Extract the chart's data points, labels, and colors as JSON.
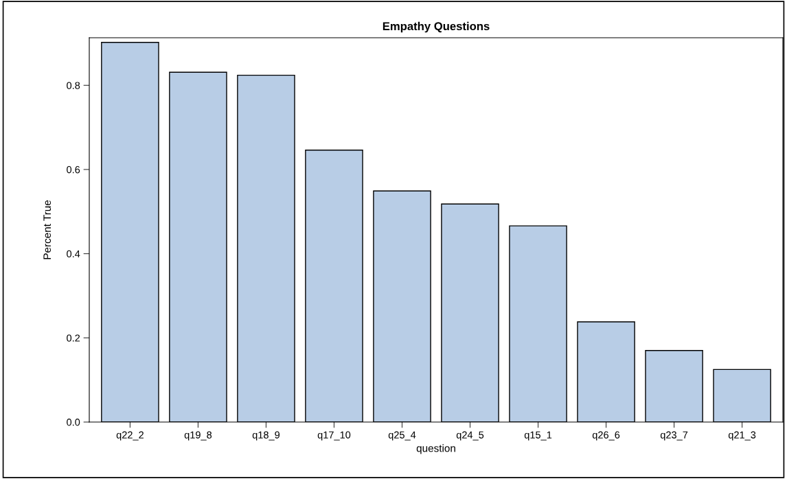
{
  "chart_data": {
    "type": "bar",
    "title": "Empathy Questions",
    "xlabel": "question",
    "ylabel": "Percent True",
    "categories": [
      "q22_2",
      "q19_8",
      "q18_9",
      "q17_10",
      "q25_4",
      "q24_5",
      "q15_1",
      "q26_6",
      "q23_7",
      "q21_3"
    ],
    "values": [
      0.902,
      0.831,
      0.824,
      0.646,
      0.549,
      0.518,
      0.466,
      0.238,
      0.17,
      0.125
    ],
    "color": "#b8cde6",
    "ylim": [
      0,
      0.913
    ],
    "yticks": [
      {
        "value": 0,
        "label": "0.0"
      },
      0.2,
      0.4,
      0.6,
      0.8
    ],
    "grid": false
  }
}
